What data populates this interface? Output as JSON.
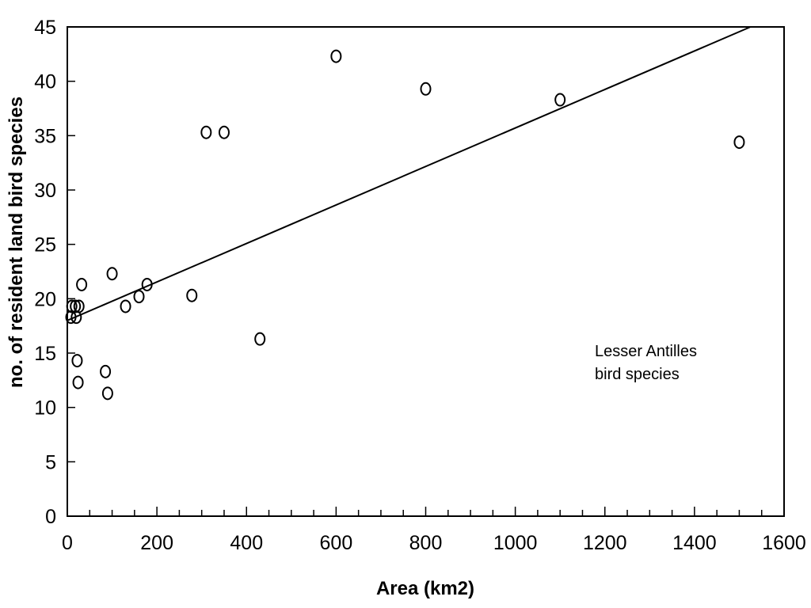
{
  "chart_data": {
    "type": "scatter",
    "title": "",
    "xlabel": "Area (km2)",
    "ylabel": "no. of resident land bird species",
    "xlim": [
      0,
      1600
    ],
    "ylim": [
      0,
      45
    ],
    "x_ticks": [
      0,
      200,
      400,
      600,
      800,
      1000,
      1200,
      1400,
      1600
    ],
    "y_ticks": [
      0,
      5,
      10,
      15,
      20,
      25,
      30,
      35,
      40,
      45
    ],
    "grid": false,
    "points": [
      {
        "x": 8,
        "y": 18.3
      },
      {
        "x": 10,
        "y": 19.3
      },
      {
        "x": 18,
        "y": 19.3
      },
      {
        "x": 20,
        "y": 18.3
      },
      {
        "x": 22,
        "y": 14.3
      },
      {
        "x": 24,
        "y": 12.3
      },
      {
        "x": 26,
        "y": 19.3
      },
      {
        "x": 32,
        "y": 21.3
      },
      {
        "x": 85,
        "y": 13.3
      },
      {
        "x": 90,
        "y": 11.3
      },
      {
        "x": 100,
        "y": 22.3
      },
      {
        "x": 130,
        "y": 19.3
      },
      {
        "x": 160,
        "y": 20.2
      },
      {
        "x": 178,
        "y": 21.3
      },
      {
        "x": 278,
        "y": 20.3
      },
      {
        "x": 310,
        "y": 35.3
      },
      {
        "x": 350,
        "y": 35.3
      },
      {
        "x": 430,
        "y": 16.3
      },
      {
        "x": 600,
        "y": 42.3
      },
      {
        "x": 800,
        "y": 39.3
      },
      {
        "x": 1100,
        "y": 38.3
      },
      {
        "x": 1500,
        "y": 34.4
      }
    ],
    "fit_line": {
      "x": [
        0,
        1525
      ],
      "y": [
        18,
        45
      ]
    },
    "annotation": "Lesser Antilles\nbird species"
  }
}
